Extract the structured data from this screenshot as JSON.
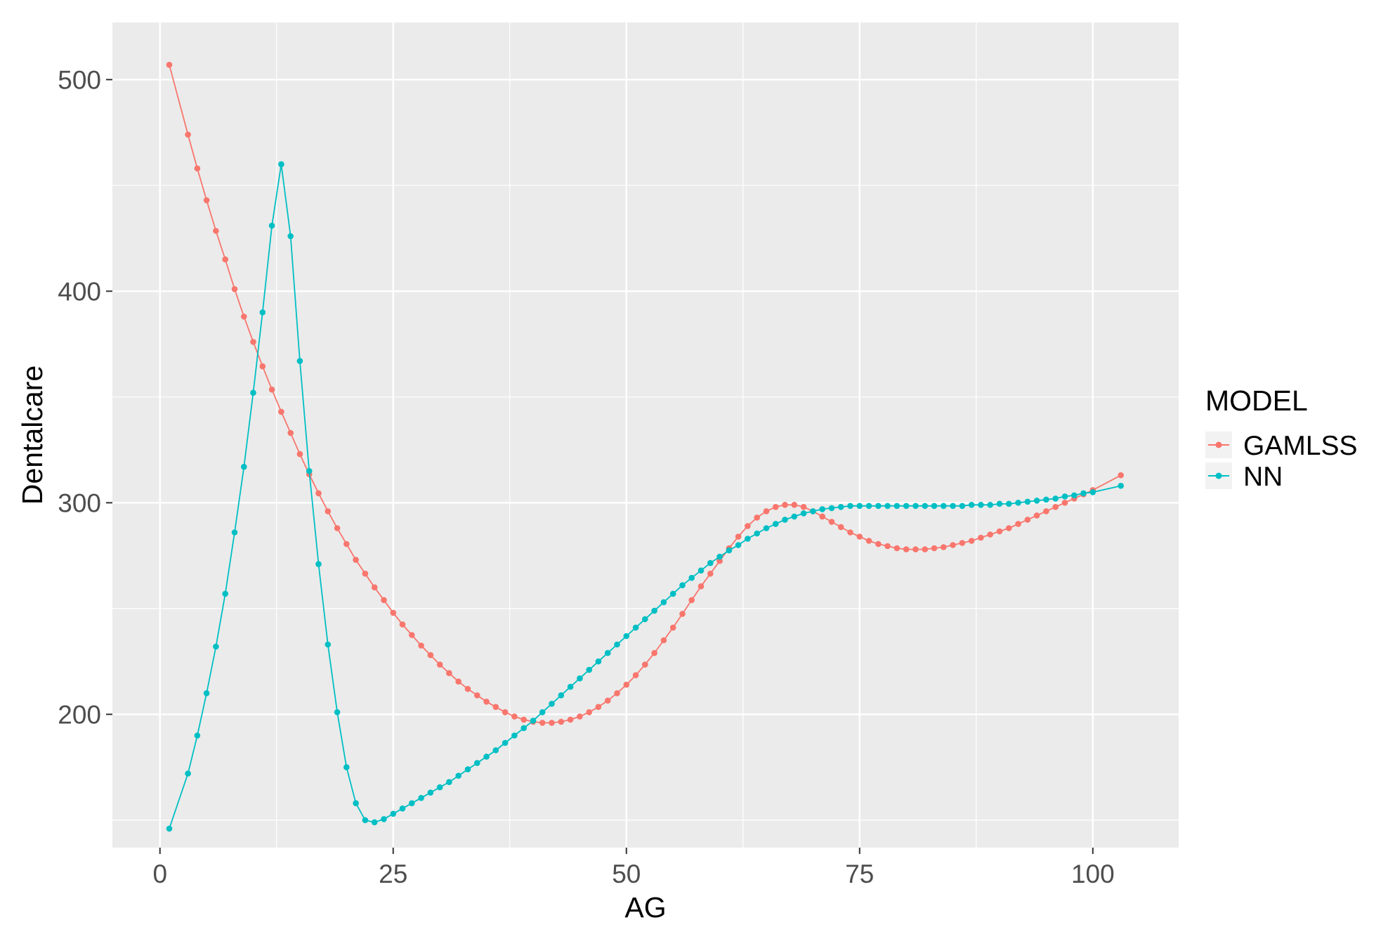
{
  "chart_data": {
    "type": "line",
    "xlabel": "AG",
    "ylabel": "Dentalcare",
    "xlim": [
      -5.1,
      109.2
    ],
    "ylim": [
      137,
      527
    ],
    "x_ticks": [
      0,
      25,
      50,
      75,
      100
    ],
    "x_tick_labels": [
      "0",
      "25",
      "50",
      "75",
      "100"
    ],
    "x_minor_ticks": [
      12.5,
      37.5,
      62.5,
      87.5
    ],
    "y_ticks": [
      200,
      300,
      400,
      500
    ],
    "y_tick_labels": [
      "200",
      "300",
      "400",
      "500"
    ],
    "y_minor_ticks": [
      150,
      250,
      350,
      450
    ],
    "grid": true,
    "legend": {
      "title": "MODEL",
      "position": "right",
      "entries": [
        "GAMLSS",
        "NN"
      ]
    },
    "series": [
      {
        "name": "GAMLSS",
        "color": "#F8766D",
        "points": [
          [
            1,
            507
          ],
          [
            3,
            474
          ],
          [
            4,
            458
          ],
          [
            5,
            443
          ],
          [
            6,
            428.5
          ],
          [
            7,
            415
          ],
          [
            8,
            401
          ],
          [
            9,
            388
          ],
          [
            10,
            376
          ],
          [
            11,
            364.5
          ],
          [
            12,
            353.5
          ],
          [
            13,
            343
          ],
          [
            14,
            333
          ],
          [
            15,
            323
          ],
          [
            16,
            313.5
          ],
          [
            17,
            304.5
          ],
          [
            18,
            296
          ],
          [
            19,
            288
          ],
          [
            20,
            280.5
          ],
          [
            21,
            273
          ],
          [
            22,
            266.5
          ],
          [
            23,
            260
          ],
          [
            24,
            254
          ],
          [
            25,
            248
          ],
          [
            26,
            242.5
          ],
          [
            27,
            237.5
          ],
          [
            28,
            232.5
          ],
          [
            29,
            228
          ],
          [
            30,
            223.5
          ],
          [
            31,
            219.5
          ],
          [
            32,
            215.5
          ],
          [
            33,
            212
          ],
          [
            34,
            209
          ],
          [
            35,
            206
          ],
          [
            36,
            203.5
          ],
          [
            37,
            201
          ],
          [
            38,
            199
          ],
          [
            39,
            197.5
          ],
          [
            40,
            196.5
          ],
          [
            41,
            196
          ],
          [
            42,
            196
          ],
          [
            43,
            196.5
          ],
          [
            44,
            197.5
          ],
          [
            45,
            199
          ],
          [
            46,
            201
          ],
          [
            47,
            203.5
          ],
          [
            48,
            206.5
          ],
          [
            49,
            210
          ],
          [
            50,
            214
          ],
          [
            51,
            218.5
          ],
          [
            52,
            223.5
          ],
          [
            53,
            229
          ],
          [
            54,
            235
          ],
          [
            55,
            241
          ],
          [
            56,
            247.5
          ],
          [
            57,
            254
          ],
          [
            58,
            260.5
          ],
          [
            59,
            266.5
          ],
          [
            60,
            272.5
          ],
          [
            61,
            278.5
          ],
          [
            62,
            284
          ],
          [
            63,
            289
          ],
          [
            64,
            293
          ],
          [
            65,
            296
          ],
          [
            66,
            298
          ],
          [
            67,
            299
          ],
          [
            68,
            299
          ],
          [
            69,
            298
          ],
          [
            70,
            296
          ],
          [
            71,
            293.5
          ],
          [
            72,
            291
          ],
          [
            73,
            288.5
          ],
          [
            74,
            286
          ],
          [
            75,
            284
          ],
          [
            76,
            282
          ],
          [
            77,
            280.5
          ],
          [
            78,
            279.5
          ],
          [
            79,
            278.5
          ],
          [
            80,
            278
          ],
          [
            81,
            278
          ],
          [
            82,
            278
          ],
          [
            83,
            278.5
          ],
          [
            84,
            279
          ],
          [
            85,
            280
          ],
          [
            86,
            281
          ],
          [
            87,
            282
          ],
          [
            88,
            283.5
          ],
          [
            89,
            285
          ],
          [
            90,
            286.5
          ],
          [
            91,
            288
          ],
          [
            92,
            290
          ],
          [
            93,
            292
          ],
          [
            94,
            294
          ],
          [
            95,
            296
          ],
          [
            96,
            298
          ],
          [
            97,
            300
          ],
          [
            98,
            302
          ],
          [
            99,
            304
          ],
          [
            100,
            306
          ],
          [
            103,
            313
          ]
        ]
      },
      {
        "name": "NN",
        "color": "#00BFC4",
        "points": [
          [
            1,
            146
          ],
          [
            3,
            172
          ],
          [
            4,
            190
          ],
          [
            5,
            210
          ],
          [
            6,
            232
          ],
          [
            7,
            257
          ],
          [
            8,
            286
          ],
          [
            9,
            317
          ],
          [
            10,
            352
          ],
          [
            11,
            390
          ],
          [
            12,
            431
          ],
          [
            13,
            460
          ],
          [
            14,
            426
          ],
          [
            15,
            367
          ],
          [
            16,
            315
          ],
          [
            17,
            271
          ],
          [
            18,
            233
          ],
          [
            19,
            201
          ],
          [
            20,
            175
          ],
          [
            21,
            158
          ],
          [
            22,
            150
          ],
          [
            23,
            149
          ],
          [
            24,
            150.5
          ],
          [
            25,
            153
          ],
          [
            26,
            155.5
          ],
          [
            27,
            158
          ],
          [
            28,
            160.5
          ],
          [
            29,
            163
          ],
          [
            30,
            165.5
          ],
          [
            31,
            168
          ],
          [
            32,
            171
          ],
          [
            33,
            174
          ],
          [
            34,
            177
          ],
          [
            35,
            180
          ],
          [
            36,
            183
          ],
          [
            37,
            186.5
          ],
          [
            38,
            190
          ],
          [
            39,
            193.5
          ],
          [
            40,
            197
          ],
          [
            41,
            201
          ],
          [
            42,
            205
          ],
          [
            43,
            209
          ],
          [
            44,
            213
          ],
          [
            45,
            217
          ],
          [
            46,
            221
          ],
          [
            47,
            225
          ],
          [
            48,
            229
          ],
          [
            49,
            233
          ],
          [
            50,
            237
          ],
          [
            51,
            241
          ],
          [
            52,
            245
          ],
          [
            53,
            249
          ],
          [
            54,
            253
          ],
          [
            55,
            257
          ],
          [
            56,
            261
          ],
          [
            57,
            264.5
          ],
          [
            58,
            268
          ],
          [
            59,
            271.5
          ],
          [
            60,
            274.5
          ],
          [
            61,
            277.5
          ],
          [
            62,
            280
          ],
          [
            63,
            283
          ],
          [
            64,
            285.5
          ],
          [
            65,
            288
          ],
          [
            66,
            290
          ],
          [
            67,
            292
          ],
          [
            68,
            293.5
          ],
          [
            69,
            295
          ],
          [
            70,
            296
          ],
          [
            71,
            297
          ],
          [
            72,
            297.5
          ],
          [
            73,
            298
          ],
          [
            74,
            298.5
          ],
          [
            75,
            298.5
          ],
          [
            76,
            298.5
          ],
          [
            77,
            298.5
          ],
          [
            78,
            298.5
          ],
          [
            79,
            298.5
          ],
          [
            80,
            298.5
          ],
          [
            81,
            298.5
          ],
          [
            82,
            298.5
          ],
          [
            83,
            298.5
          ],
          [
            84,
            298.5
          ],
          [
            85,
            298.5
          ],
          [
            86,
            298.5
          ],
          [
            87,
            299
          ],
          [
            88,
            299
          ],
          [
            89,
            299
          ],
          [
            90,
            299.5
          ],
          [
            91,
            299.5
          ],
          [
            92,
            300
          ],
          [
            93,
            300.5
          ],
          [
            94,
            301
          ],
          [
            95,
            301.5
          ],
          [
            96,
            302
          ],
          [
            97,
            303
          ],
          [
            98,
            303.5
          ],
          [
            99,
            304.5
          ],
          [
            100,
            305
          ],
          [
            103,
            308
          ]
        ]
      }
    ]
  }
}
